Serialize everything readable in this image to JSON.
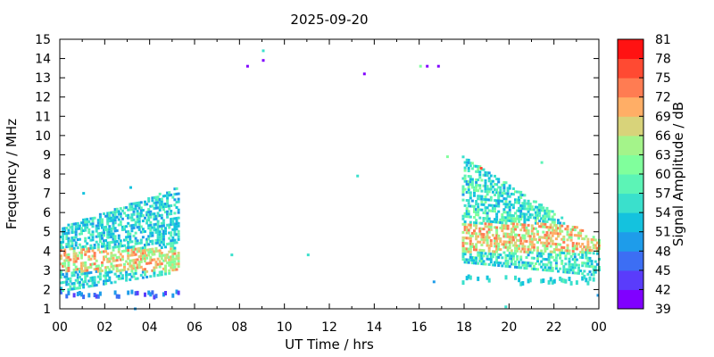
{
  "chart_data": {
    "type": "heatmap",
    "title": "2025-09-20",
    "xlabel": "UT Time / hrs",
    "ylabel": "Frequency / MHz",
    "colorbar_label": "Signal Amplitude / dB",
    "xlim": [
      0,
      24
    ],
    "ylim": [
      1,
      15
    ],
    "x_ticks": [
      "00",
      "02",
      "04",
      "06",
      "08",
      "10",
      "12",
      "14",
      "16",
      "18",
      "20",
      "22",
      "00"
    ],
    "y_ticks": [
      "1",
      "2",
      "3",
      "4",
      "5",
      "6",
      "7",
      "8",
      "9",
      "10",
      "11",
      "12",
      "13",
      "14",
      "15"
    ],
    "colorbar_ticks": [
      "39",
      "42",
      "45",
      "48",
      "51",
      "54",
      "57",
      "60",
      "63",
      "66",
      "69",
      "72",
      "75",
      "78",
      "81"
    ],
    "colorbar_range": [
      39,
      81
    ],
    "colorbar_colors": [
      "#8000ff",
      "#5a3cfb",
      "#3c6ef4",
      "#1e9cea",
      "#14c2de",
      "#3ae0cc",
      "#5cf4b6",
      "#80ff9c",
      "#a4f48a",
      "#d8d37a",
      "#ffae66",
      "#ff7c52",
      "#ff4a32",
      "#ff1212"
    ],
    "grid": false,
    "points": [
      [
        8.3,
        13.6,
        40
      ],
      [
        9.0,
        13.9,
        41
      ],
      [
        9.0,
        14.4,
        55
      ],
      [
        13.5,
        13.2,
        40
      ],
      [
        16.0,
        13.6,
        62
      ],
      [
        16.3,
        13.6,
        40
      ],
      [
        16.8,
        13.6,
        41
      ],
      [
        1.0,
        7.0,
        52
      ],
      [
        3.1,
        7.3,
        53
      ],
      [
        7.6,
        3.8,
        54
      ],
      [
        11.0,
        3.8,
        56
      ],
      [
        13.2,
        7.9,
        55
      ],
      [
        17.2,
        8.9,
        62
      ],
      [
        18.7,
        8.3,
        75
      ],
      [
        19.8,
        1.1,
        56
      ],
      [
        23.9,
        1.7,
        48
      ],
      [
        16.6,
        2.4,
        50
      ],
      [
        21.4,
        8.6,
        57
      ],
      [
        3.3,
        1.0,
        48
      ]
    ],
    "regions": [
      {
        "x": [
          0.0,
          5.3
        ],
        "y_low": [
          2.0,
          3.0
        ],
        "y_high": [
          5.3,
          7.4
        ],
        "core": [
          3.0,
          4.2
        ],
        "core_value": 67,
        "edge_value": 54,
        "low_band": [
          1.7,
          2.0
        ],
        "low_band_value": 47
      },
      {
        "x": [
          17.9,
          24.0
        ],
        "y_low": [
          3.5,
          2.8
        ],
        "y_high": [
          9.0,
          4.6
        ],
        "core": [
          4.0,
          5.5
        ],
        "core_value": 68,
        "edge_value": 56,
        "low_band": [
          2.4,
          2.8
        ],
        "low_band_value": 55
      }
    ]
  }
}
